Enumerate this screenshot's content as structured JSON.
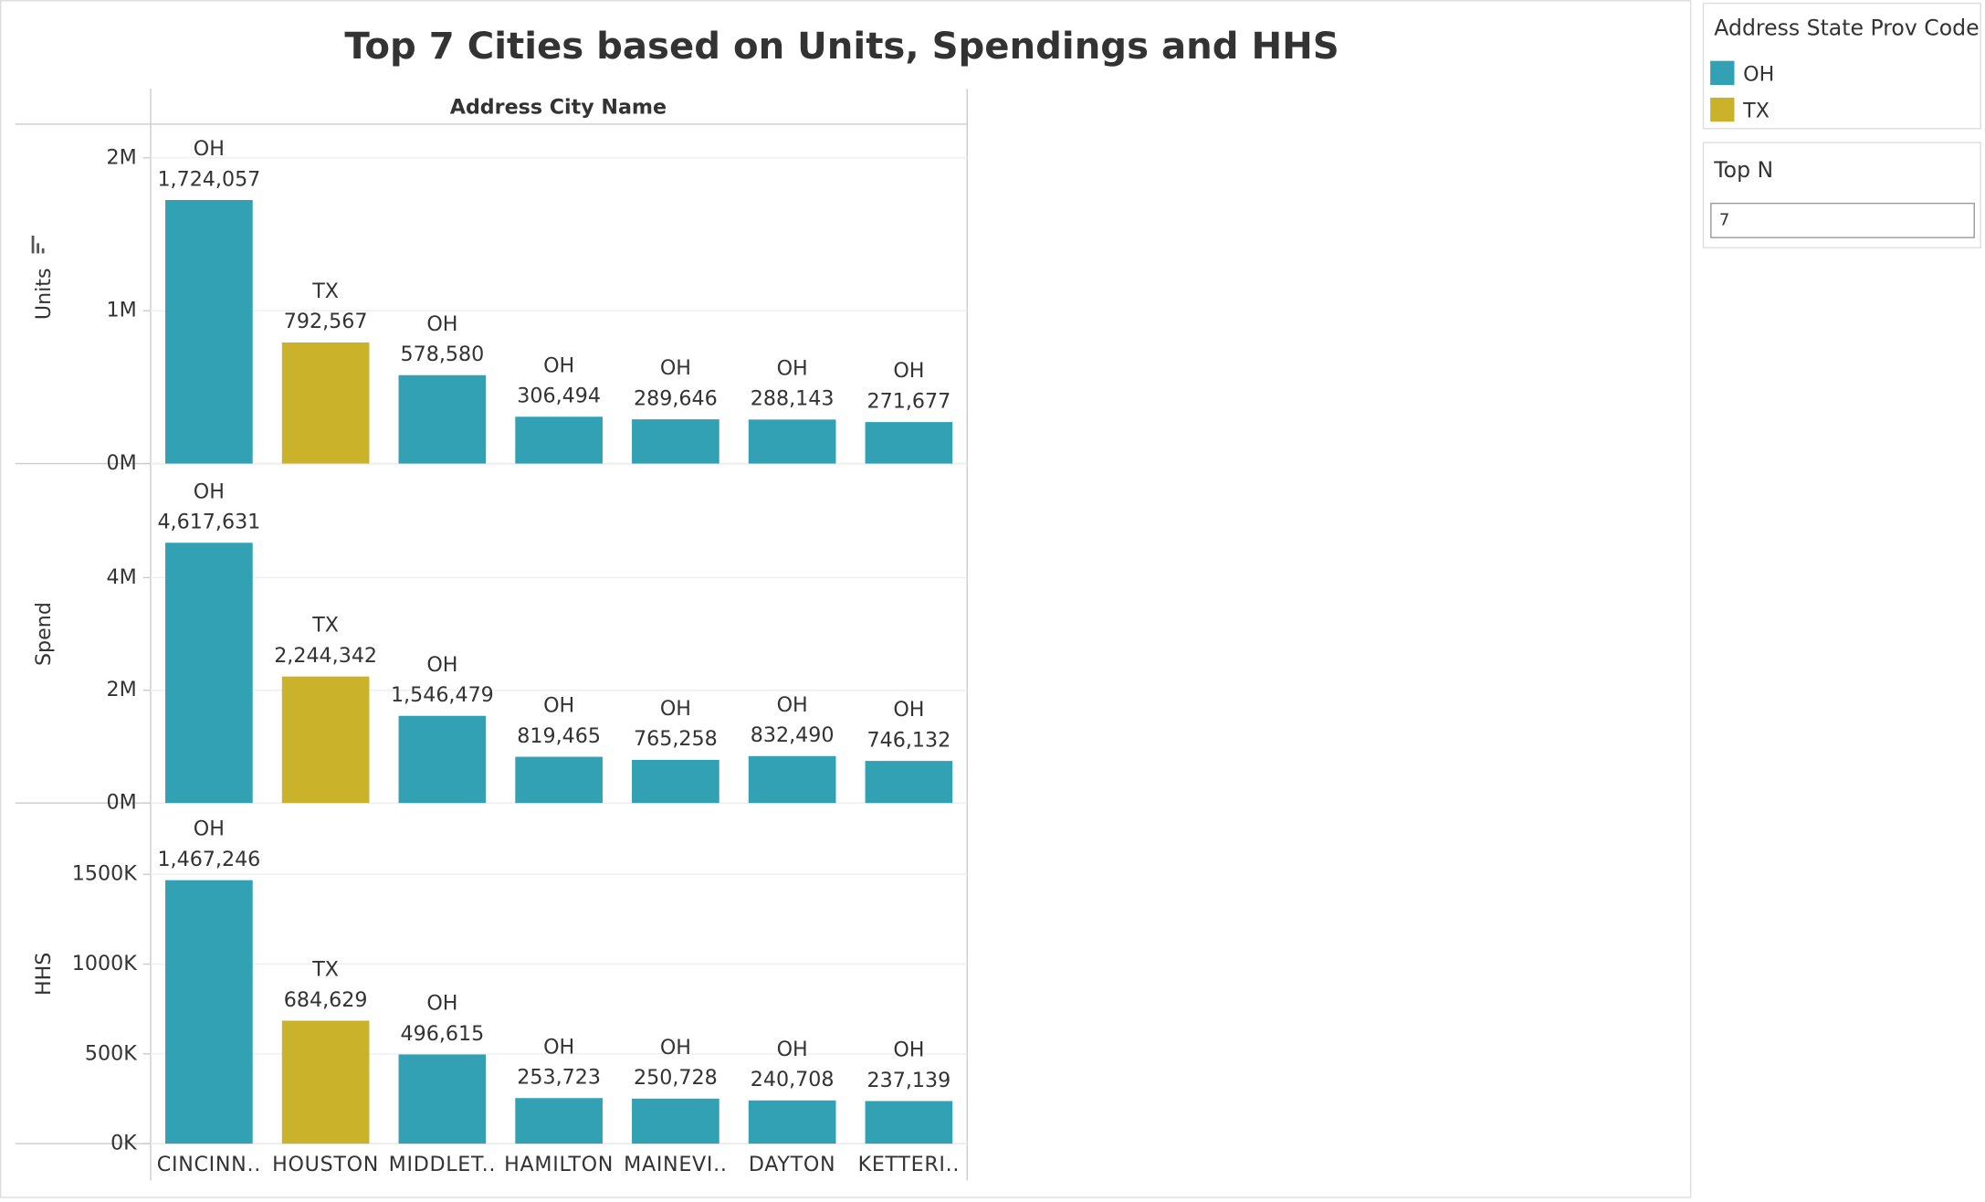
{
  "title": "Top 7 Cities based on Units, Spendings and HHS",
  "x_header": "Address City Name",
  "legend": {
    "title": "Address State Prov Code"
  },
  "filter": {
    "label": "Top N",
    "value": 7
  },
  "chart_data": [
    {
      "type": "bar",
      "ylabel": "Units",
      "series": [
        {
          "name": "OH",
          "color": "#33a1b4",
          "values": [
            1724057,
            null,
            578580,
            306494,
            289646,
            288143,
            271677
          ],
          "value_labels": [
            "1,724,057",
            null,
            "578,580",
            "306,494",
            "289,646",
            "288,143",
            "271,677"
          ]
        },
        {
          "name": "TX",
          "color": "#cbb22b",
          "values": [
            null,
            792567,
            null,
            null,
            null,
            null,
            null
          ],
          "value_labels": [
            null,
            "792,567",
            null,
            null,
            null,
            null,
            null
          ]
        }
      ],
      "ylim": [
        0,
        2220000
      ],
      "yticks": [
        {
          "value": 0,
          "label": "0M"
        },
        {
          "value": 1000000,
          "label": "1M"
        },
        {
          "value": 2000000,
          "label": "2M"
        }
      ]
    },
    {
      "type": "bar",
      "ylabel": "Spend",
      "series": [
        {
          "name": "OH",
          "color": "#33a1b4",
          "values": [
            4617631,
            null,
            1546479,
            819465,
            765258,
            832490,
            746132
          ],
          "value_labels": [
            "4,617,631",
            null,
            "1,546,479",
            "819,465",
            "765,258",
            "832,490",
            "746,132"
          ]
        },
        {
          "name": "TX",
          "color": "#cbb22b",
          "values": [
            null,
            2244342,
            null,
            null,
            null,
            null,
            null
          ],
          "value_labels": [
            null,
            "2,244,342",
            null,
            null,
            null,
            null,
            null
          ]
        }
      ],
      "ylim": [
        0,
        6000000
      ],
      "yticks": [
        {
          "value": 0,
          "label": "0M"
        },
        {
          "value": 2000000,
          "label": "2M"
        },
        {
          "value": 4000000,
          "label": "4M"
        }
      ]
    },
    {
      "type": "bar",
      "ylabel": "HHS",
      "categories": [
        "CINCINN..",
        "HOUSTON",
        "MIDDLET..",
        "HAMILTON",
        "MAINEVI..",
        "DAYTON",
        "KETTERI.."
      ],
      "series": [
        {
          "name": "OH",
          "color": "#33a1b4",
          "values": [
            1467246,
            null,
            496615,
            253723,
            250728,
            240708,
            237139
          ],
          "value_labels": [
            "1,467,246",
            null,
            "496,615",
            "253,723",
            "250,728",
            "240,708",
            "237,139"
          ]
        },
        {
          "name": "TX",
          "color": "#cbb22b",
          "values": [
            null,
            684629,
            null,
            null,
            null,
            null,
            null
          ],
          "value_labels": [
            null,
            "684,629",
            null,
            null,
            null,
            null,
            null
          ]
        }
      ],
      "ylim": [
        0,
        1890000
      ],
      "yticks": [
        {
          "value": 0,
          "label": "0K"
        },
        {
          "value": 500000,
          "label": "500K"
        },
        {
          "value": 1000000,
          "label": "1000K"
        },
        {
          "value": 1500000,
          "label": "1500K"
        }
      ]
    }
  ]
}
